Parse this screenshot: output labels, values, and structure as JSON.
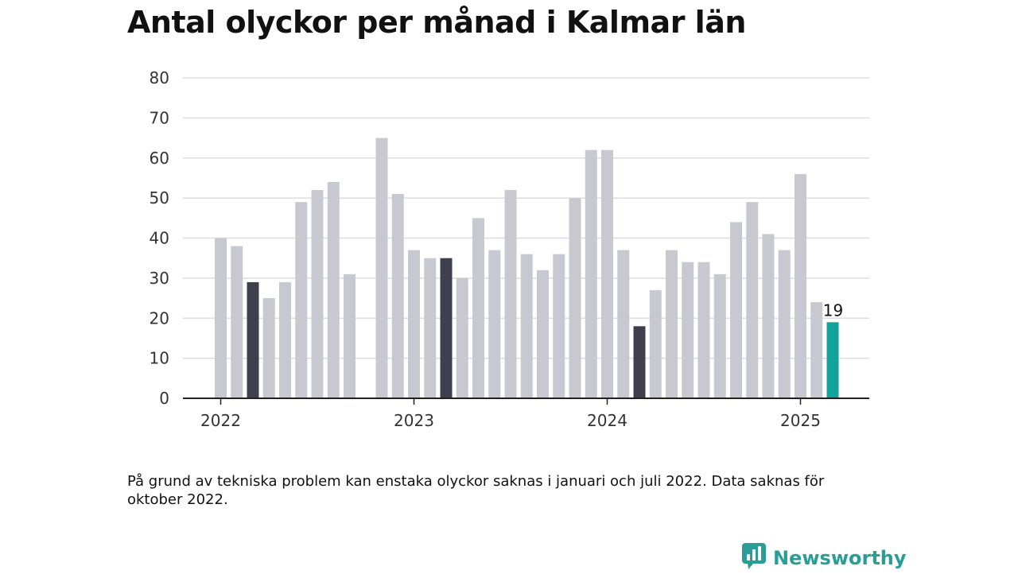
{
  "title": "Antal olyckor per månad i Kalmar län",
  "footnote": "På grund av tekniska problem kan enstaka olyckor saknas i januari och juli 2022. Data saknas för oktober 2022.",
  "brand": {
    "name": "Newsworthy",
    "icon": "newsworthy-logo-icon"
  },
  "colors": {
    "default_bar": "#c8c8d0",
    "highlight_bar": "#3f3f4d",
    "latest_bar": "#14a39a",
    "grid": "#dddddd",
    "axis": "#222222",
    "brand": "#2a9d96"
  },
  "chart_data": {
    "type": "bar",
    "title": "Antal olyckor per månad i Kalmar län",
    "xlabel": "",
    "ylabel": "",
    "ylim": [
      0,
      80
    ],
    "yticks": [
      0,
      10,
      20,
      30,
      40,
      50,
      60,
      70,
      80
    ],
    "xtick_labels": [
      {
        "label": "2022",
        "month": "2022-01"
      },
      {
        "label": "2023",
        "month": "2023-01"
      },
      {
        "label": "2024",
        "month": "2024-01"
      },
      {
        "label": "2025",
        "month": "2025-01"
      }
    ],
    "grid": true,
    "series": [
      {
        "values": [
          {
            "month": "2022-01",
            "value": 40,
            "style": "default"
          },
          {
            "month": "2022-02",
            "value": 38,
            "style": "default"
          },
          {
            "month": "2022-03",
            "value": 29,
            "style": "highlight"
          },
          {
            "month": "2022-04",
            "value": 25,
            "style": "default"
          },
          {
            "month": "2022-05",
            "value": 29,
            "style": "default"
          },
          {
            "month": "2022-06",
            "value": 49,
            "style": "default"
          },
          {
            "month": "2022-07",
            "value": 52,
            "style": "default"
          },
          {
            "month": "2022-08",
            "value": 54,
            "style": "default"
          },
          {
            "month": "2022-09",
            "value": 31,
            "style": "default"
          },
          {
            "month": "2022-10",
            "value": null,
            "style": "default"
          },
          {
            "month": "2022-11",
            "value": 65,
            "style": "default"
          },
          {
            "month": "2022-12",
            "value": 51,
            "style": "default"
          },
          {
            "month": "2023-01",
            "value": 37,
            "style": "default"
          },
          {
            "month": "2023-02",
            "value": 35,
            "style": "default"
          },
          {
            "month": "2023-03",
            "value": 35,
            "style": "highlight"
          },
          {
            "month": "2023-04",
            "value": 30,
            "style": "default"
          },
          {
            "month": "2023-05",
            "value": 45,
            "style": "default"
          },
          {
            "month": "2023-06",
            "value": 37,
            "style": "default"
          },
          {
            "month": "2023-07",
            "value": 52,
            "style": "default"
          },
          {
            "month": "2023-08",
            "value": 36,
            "style": "default"
          },
          {
            "month": "2023-09",
            "value": 32,
            "style": "default"
          },
          {
            "month": "2023-10",
            "value": 36,
            "style": "default"
          },
          {
            "month": "2023-11",
            "value": 50,
            "style": "default"
          },
          {
            "month": "2023-12",
            "value": 62,
            "style": "default"
          },
          {
            "month": "2024-01",
            "value": 62,
            "style": "default"
          },
          {
            "month": "2024-02",
            "value": 37,
            "style": "default"
          },
          {
            "month": "2024-03",
            "value": 18,
            "style": "highlight"
          },
          {
            "month": "2024-04",
            "value": 27,
            "style": "default"
          },
          {
            "month": "2024-05",
            "value": 37,
            "style": "default"
          },
          {
            "month": "2024-06",
            "value": 34,
            "style": "default"
          },
          {
            "month": "2024-07",
            "value": 34,
            "style": "default"
          },
          {
            "month": "2024-08",
            "value": 31,
            "style": "default"
          },
          {
            "month": "2024-09",
            "value": 44,
            "style": "default"
          },
          {
            "month": "2024-10",
            "value": 49,
            "style": "default"
          },
          {
            "month": "2024-11",
            "value": 41,
            "style": "default"
          },
          {
            "month": "2024-12",
            "value": 37,
            "style": "default"
          },
          {
            "month": "2025-01",
            "value": 56,
            "style": "default"
          },
          {
            "month": "2025-02",
            "value": 24,
            "style": "default"
          },
          {
            "month": "2025-03",
            "value": 19,
            "style": "latest",
            "label": "19"
          }
        ]
      }
    ]
  }
}
